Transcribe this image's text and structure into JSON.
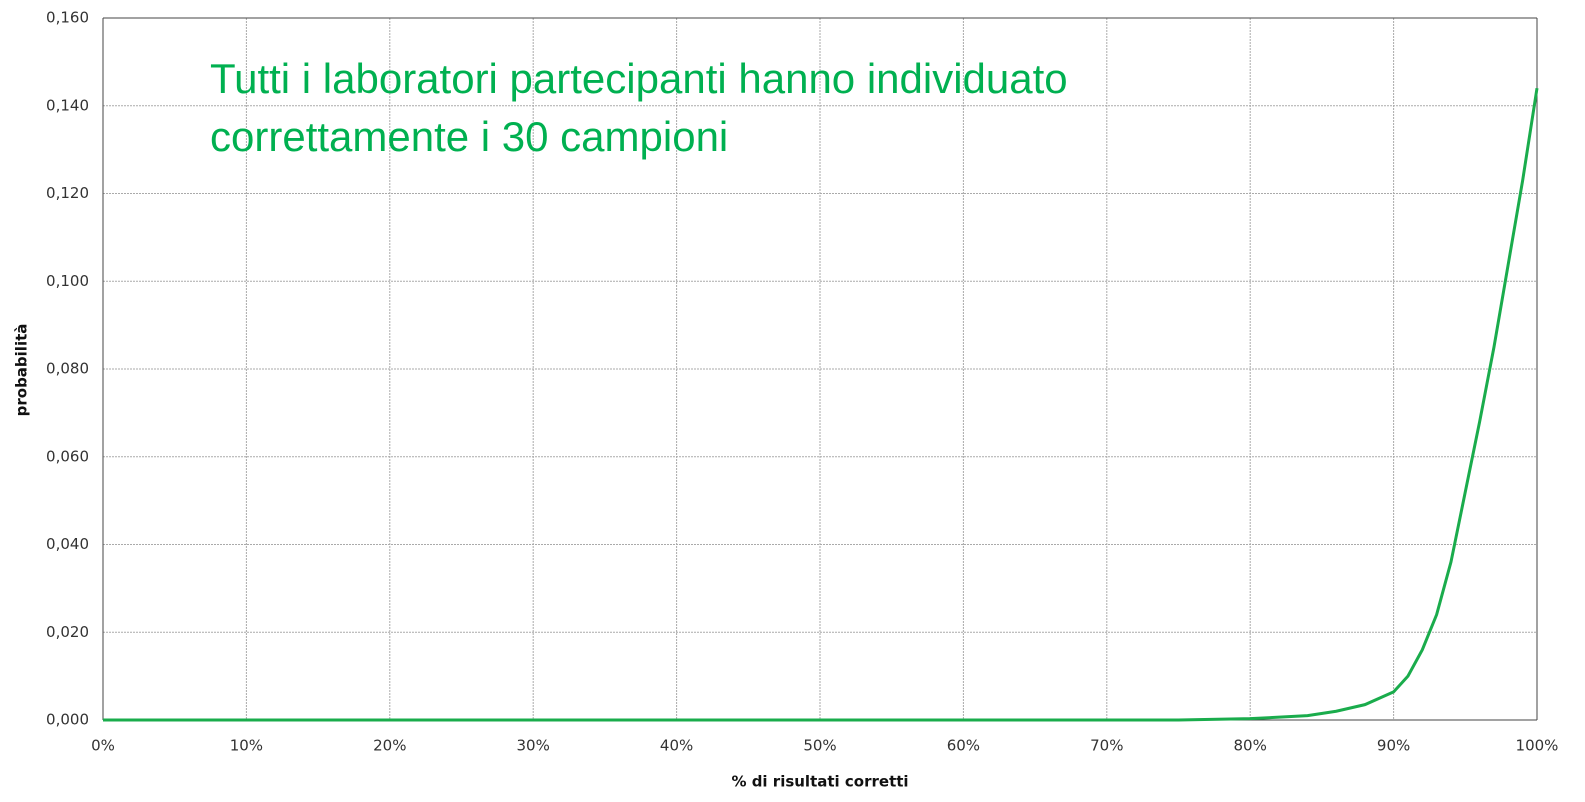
{
  "chart_data": {
    "type": "line",
    "annotations": [
      "Tutti i laboratori partecipanti hanno individuato",
      "correttamente i 30 campioni"
    ],
    "xlabel": "% di risultati corretti",
    "ylabel": "probabilità",
    "xlim": [
      0,
      100
    ],
    "ylim": [
      0,
      0.16
    ],
    "xticks": [
      {
        "value": 0,
        "label": "0%"
      },
      {
        "value": 10,
        "label": "10%"
      },
      {
        "value": 20,
        "label": "20%"
      },
      {
        "value": 30,
        "label": "30%"
      },
      {
        "value": 40,
        "label": "40%"
      },
      {
        "value": 50,
        "label": "50%"
      },
      {
        "value": 60,
        "label": "60%"
      },
      {
        "value": 70,
        "label": "70%"
      },
      {
        "value": 80,
        "label": "80%"
      },
      {
        "value": 90,
        "label": "90%"
      },
      {
        "value": 100,
        "label": "100%"
      }
    ],
    "yticks": [
      {
        "value": 0,
        "label": "0,000"
      },
      {
        "value": 0.02,
        "label": "0,020"
      },
      {
        "value": 0.04,
        "label": "0,040"
      },
      {
        "value": 0.06,
        "label": "0,060"
      },
      {
        "value": 0.08,
        "label": "0,080"
      },
      {
        "value": 0.1,
        "label": "0,100"
      },
      {
        "value": 0.12,
        "label": "0,120"
      },
      {
        "value": 0.14,
        "label": "0,140"
      },
      {
        "value": 0.16,
        "label": "0,160"
      }
    ],
    "grid": true,
    "series": [
      {
        "color": "#1aac4c",
        "x": [
          0,
          70,
          75,
          80,
          84,
          86,
          88,
          90,
          91,
          92,
          93,
          94,
          95,
          96,
          97,
          98,
          99,
          100
        ],
        "values": [
          0,
          0,
          0,
          0.0003,
          0.001,
          0.002,
          0.0035,
          0.0064,
          0.01,
          0.016,
          0.024,
          0.036,
          0.052,
          0.068,
          0.085,
          0.104,
          0.123,
          0.144
        ]
      }
    ]
  }
}
